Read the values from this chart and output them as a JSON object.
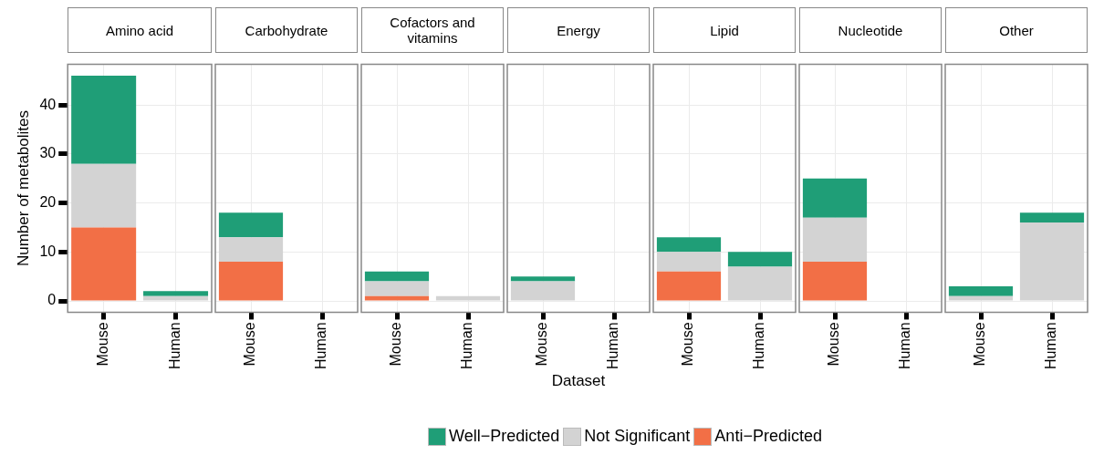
{
  "chart_data": [
    {
      "type": "bar",
      "title": "Amino acid",
      "ylabel": "Number of metabolites",
      "categories": [
        "Mouse",
        "Human"
      ],
      "stacked": true,
      "ylim": [
        -2.3,
        48.3
      ],
      "yticks": [
        0,
        10,
        20,
        30,
        40
      ],
      "grid": true,
      "legend": "bottom",
      "series": [
        {
          "name": "Anti−Predicted",
          "color": "#f26f46",
          "values": [
            15,
            0
          ]
        },
        {
          "name": "Not Significant",
          "color": "#d3d3d3",
          "values": [
            13,
            1
          ]
        },
        {
          "name": "Well−Predicted",
          "color": "#1f9e77",
          "values": [
            18,
            1
          ]
        }
      ]
    },
    {
      "type": "bar",
      "title": "Carbohydrate",
      "categories": [
        "Mouse",
        "Human"
      ],
      "stacked": true,
      "ylim": [
        -2.3,
        48.3
      ],
      "yticks": [
        0,
        10,
        20,
        30,
        40
      ],
      "grid": true,
      "tick_labels": "x",
      "series": [
        {
          "color": "#f26f46",
          "values": [
            8,
            0
          ]
        },
        {
          "color": "#d3d3d3",
          "values": [
            5,
            0
          ]
        },
        {
          "color": "#1f9e77",
          "values": [
            5,
            0
          ]
        }
      ]
    },
    {
      "type": "bar",
      "title": "Cofactors and vitamins",
      "categories": [
        "Mouse",
        "Human"
      ],
      "stacked": true,
      "ylim": [
        -2.3,
        48.3
      ],
      "yticks": [
        0,
        10,
        20,
        30,
        40
      ],
      "grid": true,
      "tick_labels": "x",
      "series": [
        {
          "color": "#f26f46",
          "values": [
            1,
            0
          ]
        },
        {
          "color": "#d3d3d3",
          "values": [
            3,
            1
          ]
        },
        {
          "color": "#1f9e77",
          "values": [
            2,
            0
          ]
        }
      ]
    },
    {
      "type": "bar",
      "title": "Energy",
      "xlabel": "Dataset",
      "categories": [
        "Mouse",
        "Human"
      ],
      "stacked": true,
      "ylim": [
        -2.3,
        48.3
      ],
      "yticks": [
        0,
        10,
        20,
        30,
        40
      ],
      "grid": true,
      "tick_labels": "x",
      "series": [
        {
          "color": "#f26f46",
          "values": [
            0,
            0
          ]
        },
        {
          "color": "#d3d3d3",
          "values": [
            4,
            0
          ]
        },
        {
          "color": "#1f9e77",
          "values": [
            1,
            0
          ]
        }
      ]
    },
    {
      "type": "bar",
      "title": "Lipid",
      "categories": [
        "Mouse",
        "Human"
      ],
      "stacked": true,
      "ylim": [
        -2.3,
        48.3
      ],
      "yticks": [
        0,
        10,
        20,
        30,
        40
      ],
      "grid": true,
      "tick_labels": "x",
      "series": [
        {
          "color": "#f26f46",
          "values": [
            6,
            0
          ]
        },
        {
          "color": "#d3d3d3",
          "values": [
            4,
            7
          ]
        },
        {
          "color": "#1f9e77",
          "values": [
            3,
            3
          ]
        }
      ]
    },
    {
      "type": "bar",
      "title": "Nucleotide",
      "categories": [
        "Mouse",
        "Human"
      ],
      "stacked": true,
      "ylim": [
        -2.3,
        48.3
      ],
      "yticks": [
        0,
        10,
        20,
        30,
        40
      ],
      "grid": true,
      "tick_labels": "x",
      "series": [
        {
          "color": "#f26f46",
          "values": [
            8,
            0
          ]
        },
        {
          "color": "#d3d3d3",
          "values": [
            9,
            0
          ]
        },
        {
          "color": "#1f9e77",
          "values": [
            8,
            0
          ]
        }
      ]
    },
    {
      "type": "bar",
      "title": "Other",
      "categories": [
        "Mouse",
        "Human"
      ],
      "stacked": true,
      "ylim": [
        -2.3,
        48.3
      ],
      "yticks": [
        0,
        10,
        20,
        30,
        40
      ],
      "grid": true,
      "tick_labels": "x",
      "series": [
        {
          "color": "#f26f46",
          "values": [
            0,
            0
          ]
        },
        {
          "color": "#d3d3d3",
          "values": [
            1,
            16
          ]
        },
        {
          "color": "#1f9e77",
          "values": [
            2,
            2
          ]
        }
      ]
    }
  ]
}
